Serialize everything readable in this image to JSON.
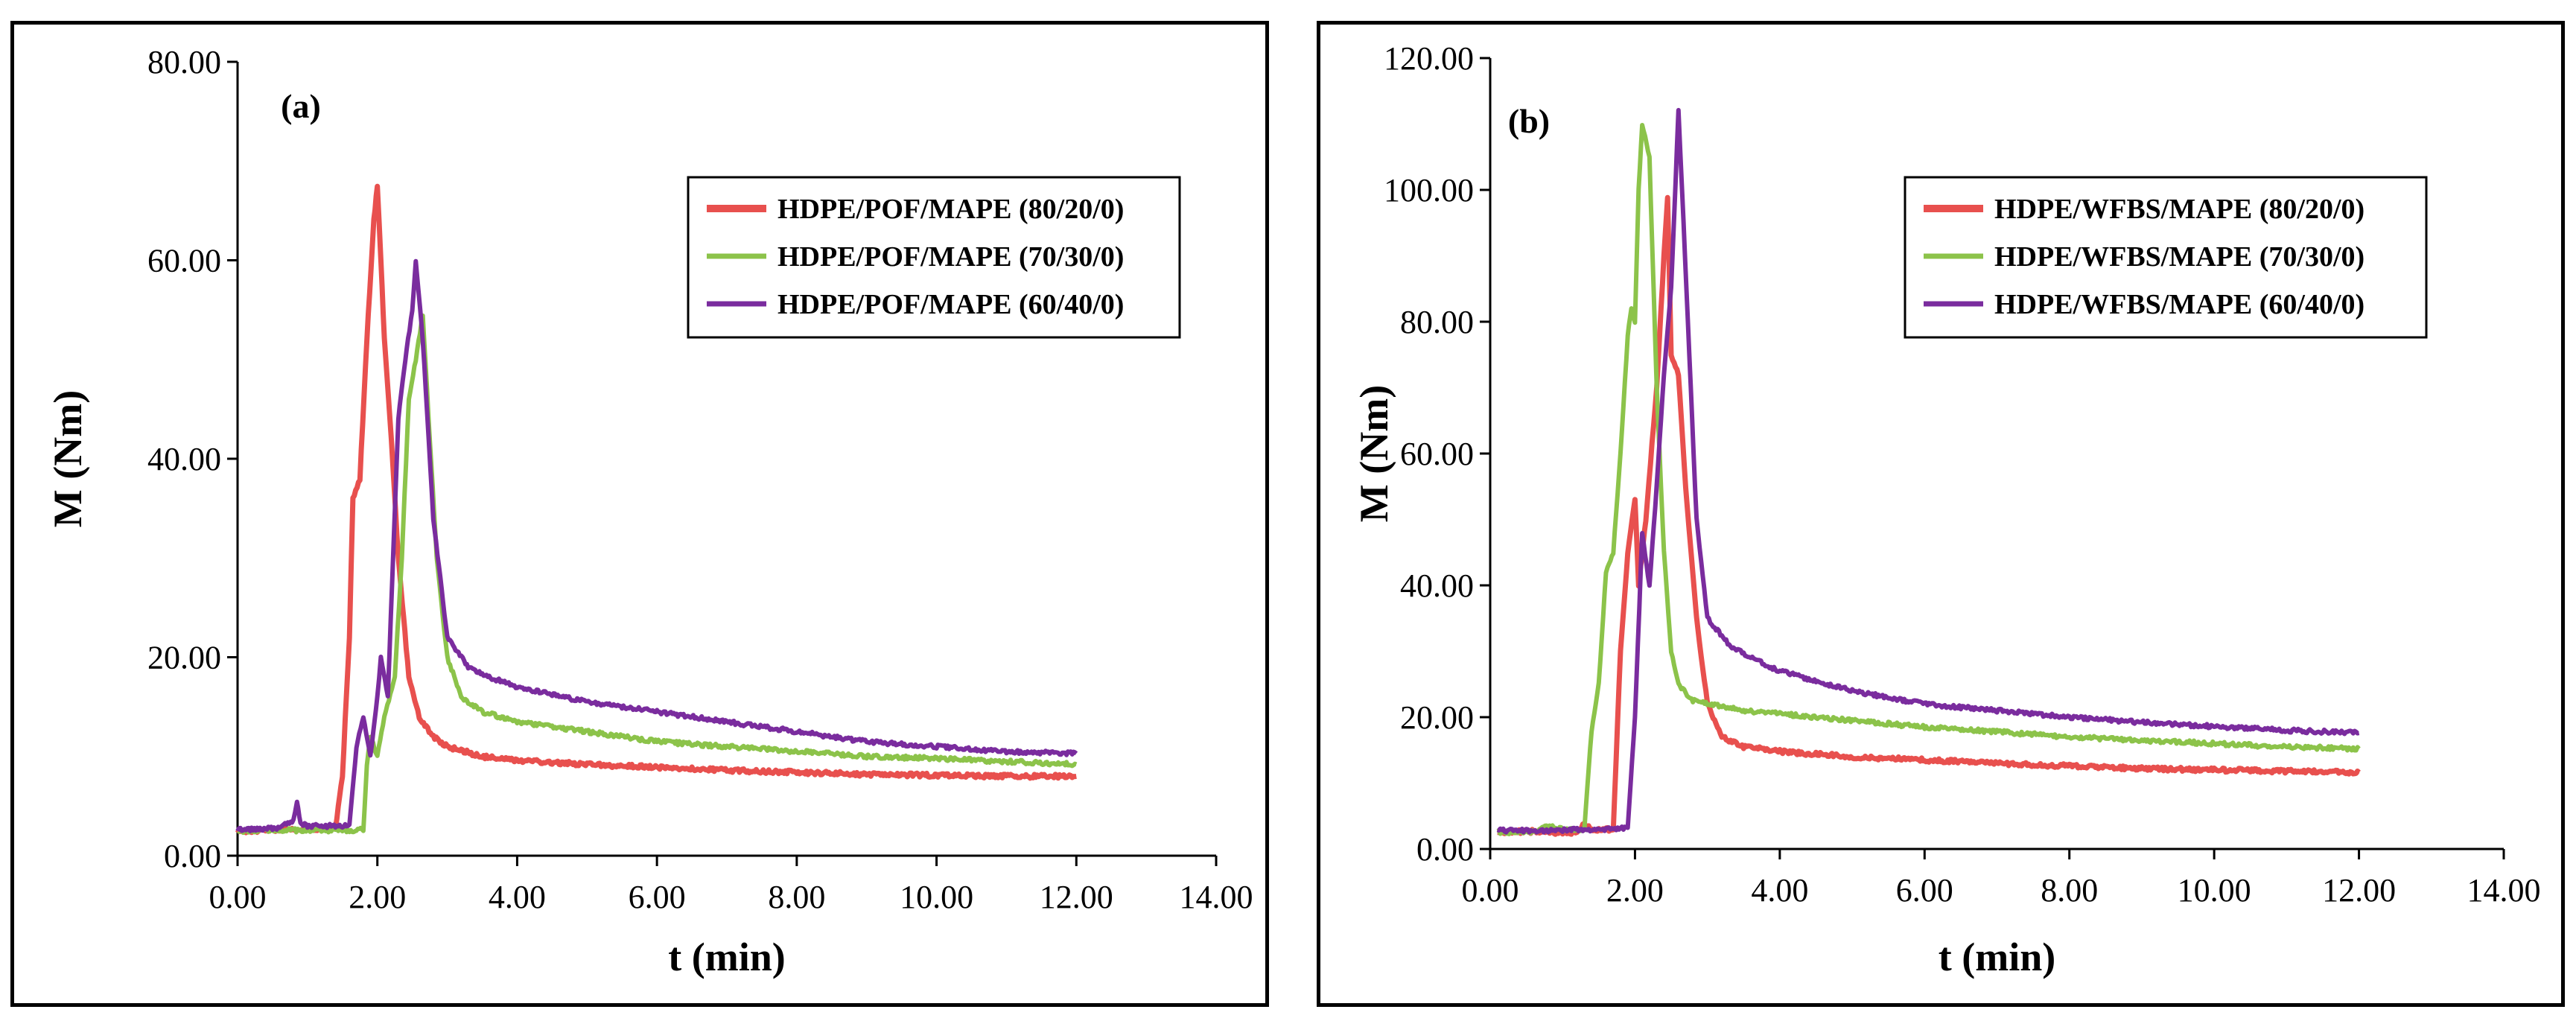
{
  "chart_data": [
    {
      "type": "line",
      "panel_label": "(a)",
      "xlabel": "t (min)",
      "ylabel": "M (Nm)",
      "xlim": [
        0,
        14
      ],
      "ylim": [
        0,
        80
      ],
      "xticks": [
        "0.00",
        "2.00",
        "4.00",
        "6.00",
        "8.00",
        "10.00",
        "12.00",
        "14.00"
      ],
      "yticks": [
        "0.00",
        "20.00",
        "40.00",
        "60.00",
        "80.00"
      ],
      "legend_position": "top-right",
      "series": [
        {
          "name": "HDPE/POF/MAPE (80/20/0)",
          "color": "#e8504e",
          "points": [
            [
              0,
              2.5
            ],
            [
              0.7,
              2.6
            ],
            [
              1.4,
              2.8
            ],
            [
              1.5,
              8
            ],
            [
              1.6,
              22
            ],
            [
              1.65,
              36
            ],
            [
              1.75,
              38
            ],
            [
              1.85,
              52
            ],
            [
              1.95,
              64
            ],
            [
              2.0,
              67.5
            ],
            [
              2.05,
              60
            ],
            [
              2.1,
              52
            ],
            [
              2.2,
              42
            ],
            [
              2.3,
              30
            ],
            [
              2.45,
              18
            ],
            [
              2.6,
              14
            ],
            [
              2.8,
              12
            ],
            [
              3.0,
              11
            ],
            [
              3.5,
              10
            ],
            [
              4,
              9.6
            ],
            [
              5,
              9.2
            ],
            [
              6,
              8.9
            ],
            [
              7,
              8.6
            ],
            [
              8,
              8.4
            ],
            [
              9,
              8.2
            ],
            [
              10,
              8.1
            ],
            [
              11,
              8.0
            ],
            [
              12,
              8.0
            ]
          ]
        },
        {
          "name": "HDPE/POF/MAPE (70/30/0)",
          "color": "#8cc34a",
          "points": [
            [
              0,
              2.5
            ],
            [
              0.7,
              2.6
            ],
            [
              1.0,
              2.5
            ],
            [
              1.8,
              2.6
            ],
            [
              1.85,
              9
            ],
            [
              1.9,
              12
            ],
            [
              2.0,
              10
            ],
            [
              2.1,
              14
            ],
            [
              2.25,
              18
            ],
            [
              2.35,
              30
            ],
            [
              2.45,
              46
            ],
            [
              2.55,
              50
            ],
            [
              2.65,
              54.5
            ],
            [
              2.75,
              42
            ],
            [
              2.85,
              30
            ],
            [
              3.0,
              20
            ],
            [
              3.2,
              16
            ],
            [
              3.5,
              14.5
            ],
            [
              4,
              13.5
            ],
            [
              5,
              12.5
            ],
            [
              6,
              11.5
            ],
            [
              7,
              11
            ],
            [
              8,
              10.5
            ],
            [
              9,
              10
            ],
            [
              10,
              9.8
            ],
            [
              11,
              9.5
            ],
            [
              12,
              9.2
            ]
          ]
        },
        {
          "name": "HDPE/POF/MAPE (60/40/0)",
          "color": "#7a2c9e",
          "points": [
            [
              0,
              2.6
            ],
            [
              0.6,
              2.8
            ],
            [
              0.8,
              3.5
            ],
            [
              0.85,
              5.5
            ],
            [
              0.9,
              3.2
            ],
            [
              1.0,
              3.0
            ],
            [
              1.5,
              3.0
            ],
            [
              1.6,
              3.0
            ],
            [
              1.7,
              11
            ],
            [
              1.8,
              14
            ],
            [
              1.9,
              10
            ],
            [
              2.0,
              16
            ],
            [
              2.05,
              20
            ],
            [
              2.15,
              16
            ],
            [
              2.3,
              44
            ],
            [
              2.4,
              50
            ],
            [
              2.5,
              55
            ],
            [
              2.55,
              60
            ],
            [
              2.65,
              52
            ],
            [
              2.8,
              34
            ],
            [
              3.0,
              22
            ],
            [
              3.3,
              19
            ],
            [
              3.6,
              18
            ],
            [
              4,
              17
            ],
            [
              5,
              15.5
            ],
            [
              6,
              14.5
            ],
            [
              7,
              13.5
            ],
            [
              8,
              12.5
            ],
            [
              9,
              11.5
            ],
            [
              10,
              11
            ],
            [
              11,
              10.5
            ],
            [
              12,
              10.3
            ]
          ]
        }
      ]
    },
    {
      "type": "line",
      "panel_label": "(b)",
      "xlabel": "t (min)",
      "ylabel": "M (Nm)",
      "xlim": [
        0,
        14
      ],
      "ylim": [
        0,
        120
      ],
      "xticks": [
        "0.00",
        "2.00",
        "4.00",
        "6.00",
        "8.00",
        "10.00",
        "12.00",
        "14.00"
      ],
      "yticks": [
        "0.00",
        "20.00",
        "40.00",
        "60.00",
        "80.00",
        "100.00",
        "120.00"
      ],
      "legend_position": "top-right",
      "series": [
        {
          "name": "HDPE/WFBS/MAPE (80/20/0)",
          "color": "#e8504e",
          "points": [
            [
              0.1,
              2.6
            ],
            [
              0.8,
              2.7
            ],
            [
              0.9,
              2.5
            ],
            [
              1.2,
              2.5
            ],
            [
              1.3,
              4
            ],
            [
              1.4,
              2.8
            ],
            [
              1.7,
              3
            ],
            [
              1.8,
              30
            ],
            [
              1.9,
              45
            ],
            [
              2.0,
              53
            ],
            [
              2.05,
              40
            ],
            [
              2.15,
              50
            ],
            [
              2.3,
              70
            ],
            [
              2.4,
              90
            ],
            [
              2.45,
              99
            ],
            [
              2.5,
              75
            ],
            [
              2.6,
              72
            ],
            [
              2.7,
              55
            ],
            [
              2.85,
              35
            ],
            [
              3.0,
              22
            ],
            [
              3.2,
              17
            ],
            [
              3.5,
              15.5
            ],
            [
              4,
              14.8
            ],
            [
              5,
              14
            ],
            [
              6,
              13.5
            ],
            [
              7,
              13
            ],
            [
              8,
              12.6
            ],
            [
              9,
              12.2
            ],
            [
              10,
              12
            ],
            [
              11,
              11.8
            ],
            [
              12,
              11.6
            ]
          ]
        },
        {
          "name": "HDPE/WFBS/MAPE (70/30/0)",
          "color": "#8cc34a",
          "points": [
            [
              0.1,
              2.5
            ],
            [
              0.6,
              2.6
            ],
            [
              0.8,
              3.5
            ],
            [
              1.0,
              3.0
            ],
            [
              1.3,
              3
            ],
            [
              1.4,
              18
            ],
            [
              1.5,
              25
            ],
            [
              1.6,
              42
            ],
            [
              1.7,
              45
            ],
            [
              1.8,
              60
            ],
            [
              1.9,
              78
            ],
            [
              1.95,
              82
            ],
            [
              2.0,
              80
            ],
            [
              2.05,
              100
            ],
            [
              2.1,
              110
            ],
            [
              2.2,
              105
            ],
            [
              2.3,
              70
            ],
            [
              2.4,
              45
            ],
            [
              2.5,
              30
            ],
            [
              2.6,
              25
            ],
            [
              2.8,
              22.5
            ],
            [
              3.0,
              22
            ],
            [
              3.5,
              21
            ],
            [
              4,
              20.5
            ],
            [
              5,
              19.5
            ],
            [
              6,
              18.5
            ],
            [
              7,
              17.8
            ],
            [
              8,
              17
            ],
            [
              9,
              16.5
            ],
            [
              10,
              16
            ],
            [
              11,
              15.5
            ],
            [
              12,
              15.2
            ]
          ]
        },
        {
          "name": "HDPE/WFBS/MAPE (60/40/0)",
          "color": "#7a2c9e",
          "points": [
            [
              0.1,
              2.8
            ],
            [
              0.8,
              2.8
            ],
            [
              1.5,
              3.0
            ],
            [
              1.9,
              3.2
            ],
            [
              2.0,
              20
            ],
            [
              2.1,
              48
            ],
            [
              2.2,
              40
            ],
            [
              2.3,
              55
            ],
            [
              2.4,
              72
            ],
            [
              2.5,
              85
            ],
            [
              2.6,
              112
            ],
            [
              2.65,
              100
            ],
            [
              2.75,
              75
            ],
            [
              2.85,
              50
            ],
            [
              3.0,
              35
            ],
            [
              3.3,
              31
            ],
            [
              3.6,
              29
            ],
            [
              4,
              27
            ],
            [
              5,
              24
            ],
            [
              6,
              22
            ],
            [
              7,
              21
            ],
            [
              8,
              20
            ],
            [
              9,
              19.2
            ],
            [
              10,
              18.6
            ],
            [
              11,
              18
            ],
            [
              12,
              17.6
            ]
          ]
        }
      ]
    }
  ]
}
